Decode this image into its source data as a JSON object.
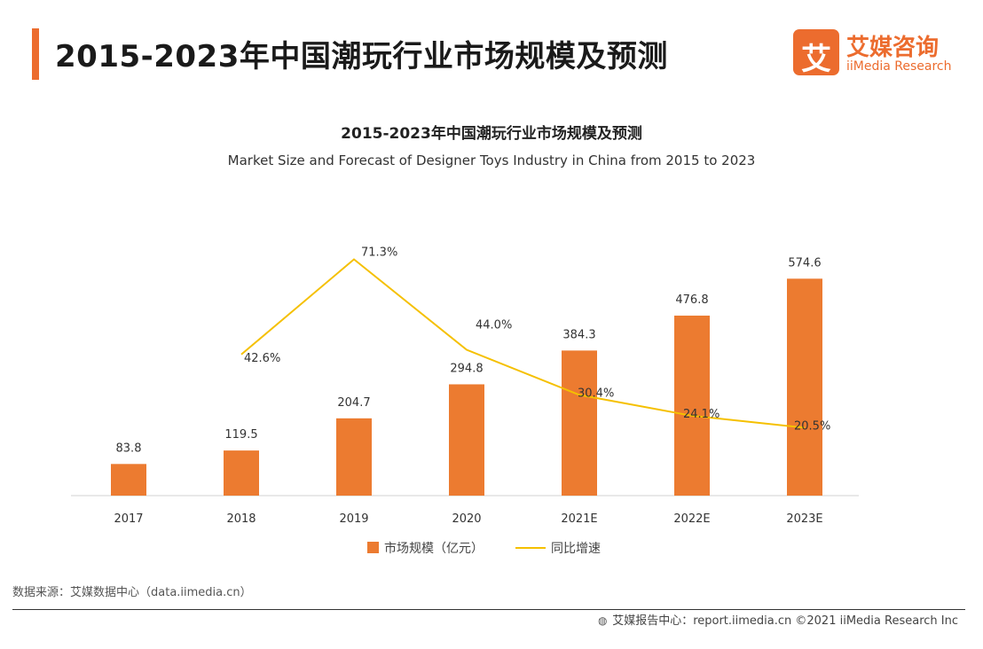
{
  "page": {
    "title": "2015-2023年中国潮玩行业市场规模及预测"
  },
  "logo": {
    "mark": "艾",
    "name_cn": "艾媒咨询",
    "name_en": "iiMedia Research"
  },
  "chart_data": {
    "type": "bar+line",
    "title": "2015-2023年中国潮玩行业市场规模及预测",
    "subtitle": "Market Size and Forecast of Designer Toys Industry in China from 2015 to 2023",
    "categories": [
      "2017",
      "2018",
      "2019",
      "2020",
      "2021E",
      "2022E",
      "2023E"
    ],
    "series": [
      {
        "name": "市场规模（亿元）",
        "type": "bar",
        "color": "#ec7b30",
        "values": [
          83.8,
          119.5,
          204.7,
          294.8,
          384.3,
          476.8,
          574.6
        ],
        "labels": [
          "83.8",
          "119.5",
          "204.7",
          "294.8",
          "384.3",
          "476.8",
          "574.6"
        ]
      },
      {
        "name": "同比增速",
        "type": "line",
        "color": "#f5c000",
        "values": [
          null,
          42.6,
          71.3,
          44.0,
          30.4,
          24.1,
          20.5
        ],
        "labels": [
          null,
          "42.6%",
          "71.3%",
          "44.0%",
          "30.4%",
          "24.1%",
          "20.5%"
        ]
      }
    ],
    "y_bar_range": [
      0,
      620
    ],
    "y_line_range": [
      0,
      80
    ],
    "grid": false,
    "legend": "bottom"
  },
  "source": "数据来源：艾媒数据中心（data.iimedia.cn）",
  "footer": {
    "icon": "globe-icon",
    "credit": "艾媒报告中心：report.iimedia.cn  ©2021  iiMedia Research  Inc"
  }
}
